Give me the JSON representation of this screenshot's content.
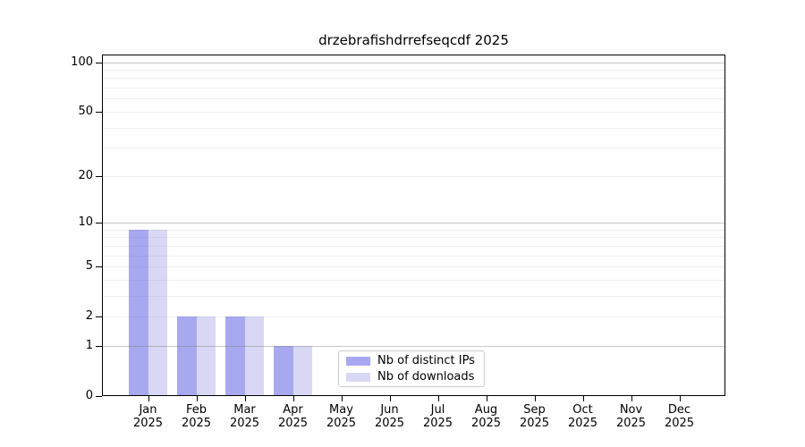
{
  "chart_data": {
    "type": "bar",
    "title": "drzebrafishdrrefseqcdf 2025",
    "categories": [
      "Jan",
      "Feb",
      "Mar",
      "Apr",
      "May",
      "Jun",
      "Jul",
      "Aug",
      "Sep",
      "Oct",
      "Nov",
      "Dec"
    ],
    "year": "2025",
    "series": [
      {
        "name": "Nb of distinct IPs",
        "color": "#a8a8f0",
        "values": [
          9,
          2,
          2,
          1,
          0,
          0,
          0,
          0,
          0,
          0,
          0,
          0
        ]
      },
      {
        "name": "Nb of downloads",
        "color": "#d8d8f5",
        "values": [
          9,
          2,
          2,
          1,
          0,
          0,
          0,
          0,
          0,
          0,
          0,
          0
        ]
      }
    ],
    "yscale": "log1p",
    "ylim": [
      0,
      112
    ],
    "y_tick_labels": [
      "100",
      "50",
      "20",
      "10",
      "5",
      "2",
      "1",
      "0"
    ],
    "y_tick_values": [
      100,
      50,
      20,
      10,
      5,
      2,
      1,
      0
    ],
    "grid": "both",
    "grid_major_values": [
      1,
      10,
      100
    ],
    "grid_minor_values": [
      2,
      3,
      4,
      5,
      6,
      7,
      8,
      9,
      20,
      30,
      40,
      50,
      60,
      70,
      80,
      90
    ],
    "legend_position": "lower center",
    "colors": {
      "grid_major": "rgba(110,110,110,0.38)",
      "grid_minor": "rgba(110,110,110,0.10)",
      "spine": "#000000",
      "background": "#ffffff"
    }
  }
}
